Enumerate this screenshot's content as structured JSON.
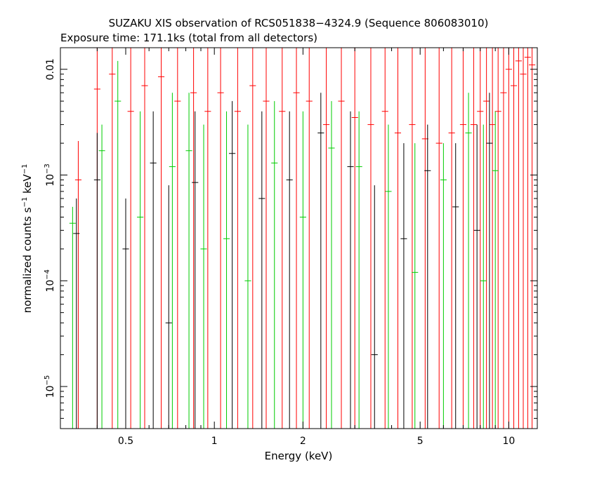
{
  "chart_data": {
    "type": "scatter",
    "title": "SUZAKU XIS observation of RCS051838−4324.9 (Sequence 806083010)",
    "subtitle": "Exposure time: 171.1ks (total from all detectors)",
    "xlabel": "Energy (keV)",
    "ylabel": {
      "base": "normalized counts s",
      "sup1": "−1",
      "mid": " keV",
      "sup2": "−1"
    },
    "x_scale": "log",
    "y_scale": "log",
    "xlim": [
      0.3,
      12.5
    ],
    "ylim": [
      4e-06,
      0.016
    ],
    "x_ticks": [
      {
        "value": 0.5,
        "label": "0.5"
      },
      {
        "value": 1,
        "label": "1"
      },
      {
        "value": 2,
        "label": "2"
      },
      {
        "value": 5,
        "label": "5"
      },
      {
        "value": 10,
        "label": "10"
      }
    ],
    "y_ticks": [
      {
        "value": 0.01,
        "label": "0.01",
        "sup": ""
      },
      {
        "value": 0.001,
        "label": "10",
        "sup": "−3"
      },
      {
        "value": 0.0001,
        "label": "10",
        "sup": "−4"
      },
      {
        "value": 1e-05,
        "label": "10",
        "sup": "−5"
      }
    ],
    "grid": false,
    "legend": "none",
    "series": [
      {
        "color": "#ff0000",
        "points": [
          {
            "x": 0.345,
            "y": 0.0009,
            "lo": 4e-06,
            "hi": 0.0021
          },
          {
            "x": 0.4,
            "y": 0.0065,
            "lo": 4e-06,
            "hi": 0.016
          },
          {
            "x": 0.45,
            "y": 0.009,
            "lo": 4e-06,
            "hi": 0.016
          },
          {
            "x": 0.52,
            "y": 0.004,
            "lo": 4e-06,
            "hi": 0.016
          },
          {
            "x": 0.58,
            "y": 0.007,
            "lo": 4e-06,
            "hi": 0.016
          },
          {
            "x": 0.66,
            "y": 0.0085,
            "lo": 4e-06,
            "hi": 0.016
          },
          {
            "x": 0.75,
            "y": 0.005,
            "lo": 4e-06,
            "hi": 0.016
          },
          {
            "x": 0.85,
            "y": 0.006,
            "lo": 4e-06,
            "hi": 0.016
          },
          {
            "x": 0.95,
            "y": 0.004,
            "lo": 4e-06,
            "hi": 0.016
          },
          {
            "x": 1.05,
            "y": 0.006,
            "lo": 4e-06,
            "hi": 0.016
          },
          {
            "x": 1.2,
            "y": 0.004,
            "lo": 4e-06,
            "hi": 0.016
          },
          {
            "x": 1.35,
            "y": 0.007,
            "lo": 4e-06,
            "hi": 0.016
          },
          {
            "x": 1.5,
            "y": 0.005,
            "lo": 4e-06,
            "hi": 0.016
          },
          {
            "x": 1.7,
            "y": 0.004,
            "lo": 4e-06,
            "hi": 0.016
          },
          {
            "x": 1.9,
            "y": 0.006,
            "lo": 4e-06,
            "hi": 0.016
          },
          {
            "x": 2.1,
            "y": 0.005,
            "lo": 4e-06,
            "hi": 0.016
          },
          {
            "x": 2.4,
            "y": 0.003,
            "lo": 4e-06,
            "hi": 0.016
          },
          {
            "x": 2.7,
            "y": 0.005,
            "lo": 4e-06,
            "hi": 0.016
          },
          {
            "x": 3.0,
            "y": 0.0035,
            "lo": 4e-06,
            "hi": 0.016
          },
          {
            "x": 3.4,
            "y": 0.003,
            "lo": 4e-06,
            "hi": 0.016
          },
          {
            "x": 3.8,
            "y": 0.004,
            "lo": 4e-06,
            "hi": 0.016
          },
          {
            "x": 4.2,
            "y": 0.0025,
            "lo": 4e-06,
            "hi": 0.016
          },
          {
            "x": 4.7,
            "y": 0.003,
            "lo": 4e-06,
            "hi": 0.016
          },
          {
            "x": 5.2,
            "y": 0.0022,
            "lo": 4e-06,
            "hi": 0.016
          },
          {
            "x": 5.8,
            "y": 0.002,
            "lo": 4e-06,
            "hi": 0.016
          },
          {
            "x": 6.4,
            "y": 0.0025,
            "lo": 4e-06,
            "hi": 0.016
          },
          {
            "x": 7.0,
            "y": 0.003,
            "lo": 4e-06,
            "hi": 0.016
          },
          {
            "x": 7.6,
            "y": 0.003,
            "lo": 4e-06,
            "hi": 0.016
          },
          {
            "x": 8.0,
            "y": 0.004,
            "lo": 4e-06,
            "hi": 0.016
          },
          {
            "x": 8.4,
            "y": 0.005,
            "lo": 4e-06,
            "hi": 0.016
          },
          {
            "x": 8.8,
            "y": 0.003,
            "lo": 4e-06,
            "hi": 0.016
          },
          {
            "x": 9.2,
            "y": 0.004,
            "lo": 4e-06,
            "hi": 0.016
          },
          {
            "x": 9.6,
            "y": 0.006,
            "lo": 4e-06,
            "hi": 0.016
          },
          {
            "x": 10.0,
            "y": 0.01,
            "lo": 4e-06,
            "hi": 0.016
          },
          {
            "x": 10.4,
            "y": 0.007,
            "lo": 4e-06,
            "hi": 0.016
          },
          {
            "x": 10.8,
            "y": 0.012,
            "lo": 4e-06,
            "hi": 0.016
          },
          {
            "x": 11.2,
            "y": 0.009,
            "lo": 4e-06,
            "hi": 0.016
          },
          {
            "x": 11.6,
            "y": 0.013,
            "lo": 4e-06,
            "hi": 0.016
          },
          {
            "x": 12.0,
            "y": 0.011,
            "lo": 4e-06,
            "hi": 0.016
          }
        ]
      },
      {
        "color": "#00cc00",
        "points": [
          {
            "x": 0.33,
            "y": 0.00035,
            "lo": 4e-06,
            "hi": 0.0005
          },
          {
            "x": 0.415,
            "y": 0.0017,
            "lo": 4e-06,
            "hi": 0.003
          },
          {
            "x": 0.47,
            "y": 0.005,
            "lo": 4e-06,
            "hi": 0.012
          },
          {
            "x": 0.56,
            "y": 0.0004,
            "lo": 4e-06,
            "hi": 0.004
          },
          {
            "x": 0.72,
            "y": 0.0012,
            "lo": 4e-06,
            "hi": 0.006
          },
          {
            "x": 0.82,
            "y": 0.0017,
            "lo": 4e-06,
            "hi": 0.006
          },
          {
            "x": 0.92,
            "y": 0.0002,
            "lo": 4e-06,
            "hi": 0.003
          },
          {
            "x": 1.1,
            "y": 0.00025,
            "lo": 4e-06,
            "hi": 0.004
          },
          {
            "x": 1.3,
            "y": 0.0001,
            "lo": 4e-06,
            "hi": 0.003
          },
          {
            "x": 1.6,
            "y": 0.0013,
            "lo": 4e-06,
            "hi": 0.005
          },
          {
            "x": 2.0,
            "y": 0.0004,
            "lo": 4e-06,
            "hi": 0.004
          },
          {
            "x": 2.5,
            "y": 0.0018,
            "lo": 4e-06,
            "hi": 0.005
          },
          {
            "x": 3.1,
            "y": 0.0012,
            "lo": 4e-06,
            "hi": 0.004
          },
          {
            "x": 3.9,
            "y": 0.0007,
            "lo": 4e-06,
            "hi": 0.003
          },
          {
            "x": 4.8,
            "y": 0.00012,
            "lo": 4e-06,
            "hi": 0.002
          },
          {
            "x": 6.0,
            "y": 0.0009,
            "lo": 4e-06,
            "hi": 0.002
          },
          {
            "x": 7.3,
            "y": 0.0025,
            "lo": 4e-06,
            "hi": 0.006
          },
          {
            "x": 8.2,
            "y": 0.0001,
            "lo": 4e-06,
            "hi": 0.003
          },
          {
            "x": 9.0,
            "y": 0.0011,
            "lo": 4e-06,
            "hi": 0.004
          }
        ]
      },
      {
        "color": "#000000",
        "points": [
          {
            "x": 0.34,
            "y": 0.00028,
            "lo": 4e-06,
            "hi": 0.0006
          },
          {
            "x": 0.4,
            "y": 0.0009,
            "lo": 4e-06,
            "hi": 0.0025
          },
          {
            "x": 0.5,
            "y": 0.0002,
            "lo": 4e-06,
            "hi": 0.0006
          },
          {
            "x": 0.62,
            "y": 0.0013,
            "lo": 4e-06,
            "hi": 0.004
          },
          {
            "x": 0.7,
            "y": 4e-05,
            "lo": 4e-06,
            "hi": 0.0008
          },
          {
            "x": 0.86,
            "y": 0.00085,
            "lo": 4e-06,
            "hi": 0.004
          },
          {
            "x": 1.15,
            "y": 0.0016,
            "lo": 4e-06,
            "hi": 0.005
          },
          {
            "x": 1.45,
            "y": 0.0006,
            "lo": 4e-06,
            "hi": 0.004
          },
          {
            "x": 1.8,
            "y": 0.0009,
            "lo": 4e-06,
            "hi": 0.004
          },
          {
            "x": 2.3,
            "y": 0.0025,
            "lo": 4e-06,
            "hi": 0.006
          },
          {
            "x": 2.9,
            "y": 0.0012,
            "lo": 4e-06,
            "hi": 0.004
          },
          {
            "x": 3.5,
            "y": 2e-05,
            "lo": 4e-06,
            "hi": 0.0008
          },
          {
            "x": 4.4,
            "y": 0.00025,
            "lo": 4e-06,
            "hi": 0.002
          },
          {
            "x": 5.3,
            "y": 0.0011,
            "lo": 4e-06,
            "hi": 0.003
          },
          {
            "x": 6.6,
            "y": 0.0005,
            "lo": 4e-06,
            "hi": 0.002
          },
          {
            "x": 7.8,
            "y": 0.0003,
            "lo": 4e-06,
            "hi": 0.003
          },
          {
            "x": 8.6,
            "y": 0.002,
            "lo": 4e-06,
            "hi": 0.006
          }
        ]
      }
    ]
  }
}
